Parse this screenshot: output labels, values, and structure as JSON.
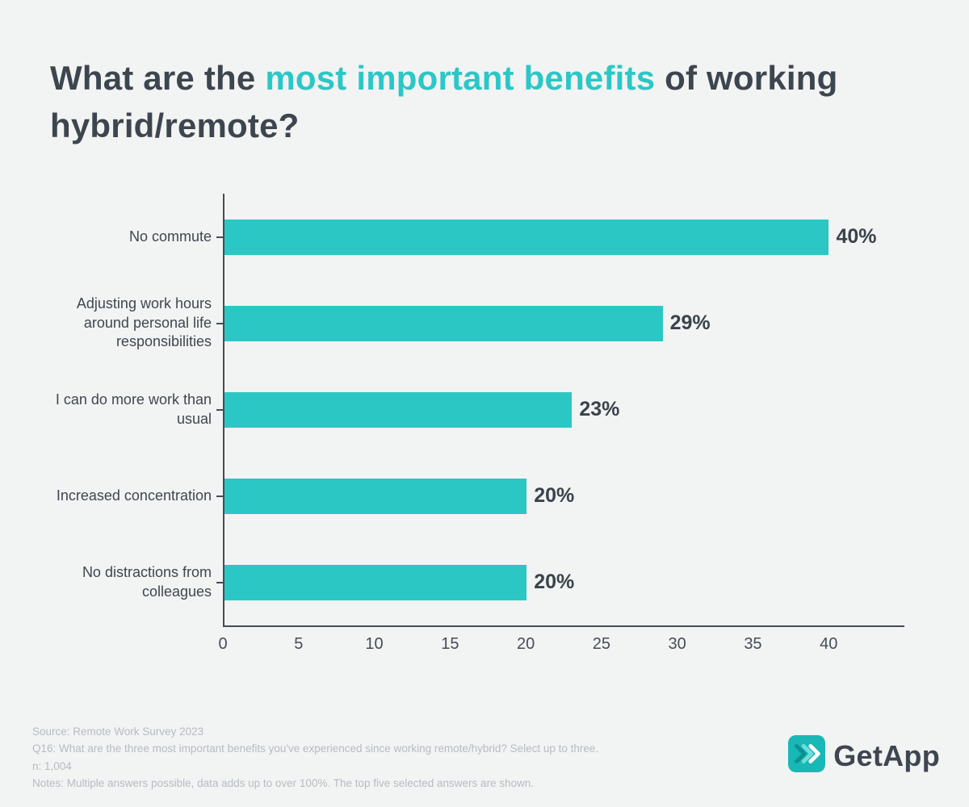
{
  "title": {
    "prefix": "What are the ",
    "highlight": "most important benefits",
    "suffix": " of working hybrid/remote?"
  },
  "chart_data": {
    "type": "bar",
    "orientation": "horizontal",
    "title": "What are the most important benefits of working hybrid/remote?",
    "categories": [
      "No commute",
      "Adjusting work hours around personal life responsibilities",
      "I can do more work than usual",
      "Increased concentration",
      "No distractions from colleagues"
    ],
    "values": [
      40,
      29,
      23,
      20,
      20
    ],
    "value_labels": [
      "40%",
      "29%",
      "23%",
      "20%",
      "20%"
    ],
    "xlabel": "",
    "ylabel": "",
    "xlim": [
      0,
      45
    ],
    "xticks": [
      0,
      5,
      10,
      15,
      20,
      25,
      30,
      35,
      40
    ],
    "grid": false,
    "legend": "none",
    "bar_color": "#2bc7c4"
  },
  "footer": {
    "lines": [
      "Source: Remote Work Survey 2023",
      "Q16: What are the three most important benefits you've experienced since working remote/hybrid? Select up to three.",
      "n: 1,004",
      "Notes: Multiple answers possible, data adds up to over 100%. The top five selected answers are shown."
    ]
  },
  "logo": {
    "text": "GetApp",
    "icon": "getapp-chevrons-icon"
  },
  "colors": {
    "accent": "#2bc7c4",
    "text_dark": "#3d454e",
    "axis": "#454d55",
    "background": "#f2f3f3",
    "footer_text": "#b6bcc1"
  }
}
